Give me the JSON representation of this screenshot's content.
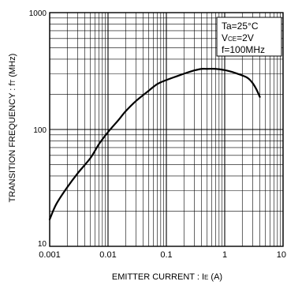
{
  "chart_data": {
    "type": "line",
    "x_scale": "log",
    "y_scale": "log",
    "xlim": [
      0.001,
      10
    ],
    "ylim": [
      10,
      1000
    ],
    "x_ticks": [
      {
        "value": 0.001,
        "label": "0.001"
      },
      {
        "value": 0.01,
        "label": "0.01"
      },
      {
        "value": 0.1,
        "label": "0.1"
      },
      {
        "value": 1,
        "label": "1"
      },
      {
        "value": 10,
        "label": "10"
      }
    ],
    "y_ticks": [
      {
        "value": 10,
        "label": "10"
      },
      {
        "value": 100,
        "label": "100"
      },
      {
        "value": 1000,
        "label": "1000"
      }
    ],
    "xlabel": {
      "main": "EMITTER  CURRENT : I",
      "sub": "E",
      "unit": " (A)"
    },
    "ylabel": {
      "main": "TRANSITION FREQUENCY : f",
      "sub": "T",
      "unit": " (MHz)"
    },
    "grid": true,
    "series": [
      {
        "color": "#000000",
        "x": [
          0.001,
          0.0013,
          0.002,
          0.003,
          0.005,
          0.007,
          0.01,
          0.015,
          0.02,
          0.03,
          0.05,
          0.07,
          0.1,
          0.15,
          0.2,
          0.3,
          0.4,
          0.5,
          0.7,
          1.0,
          1.3,
          1.5,
          2.0,
          2.5,
          3.0,
          3.5,
          4.0
        ],
        "y": [
          17,
          23,
          32,
          42,
          57,
          75,
          95,
          120,
          143,
          175,
          215,
          245,
          265,
          285,
          300,
          320,
          330,
          330,
          330,
          322,
          312,
          305,
          290,
          275,
          250,
          220,
          190
        ]
      }
    ],
    "legend": {
      "position": "top-right",
      "lines": [
        {
          "main": "Ta=25°C",
          "sub": "",
          "rest": ""
        },
        {
          "main": "V",
          "sub": "CE",
          "rest": "=2V"
        },
        {
          "main": "f=100MHz",
          "sub": "",
          "rest": ""
        }
      ]
    }
  }
}
